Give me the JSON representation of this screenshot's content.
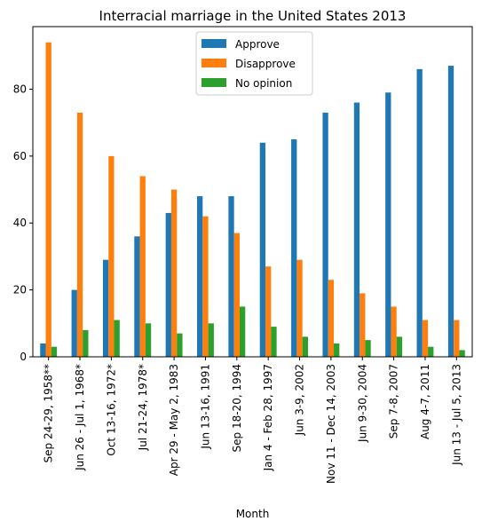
{
  "chart_data": {
    "type": "bar",
    "title": "Interracial marriage in the United States 2013",
    "xlabel": "Month",
    "ylabel": "",
    "ylim": [
      0,
      98.7
    ],
    "yticks": [
      0,
      20,
      40,
      60,
      80
    ],
    "legend_position": "top-center",
    "grid": false,
    "categories": [
      "Sep 24-29, 1958**",
      "Jun 26 - Jul 1, 1968*",
      "Oct 13-16, 1972*",
      "Jul 21-24, 1978*",
      "Apr 29 - May 2, 1983",
      "Jun 13-16, 1991",
      "Sep 18-20, 1994",
      "Jan 4 - Feb 28, 1997",
      "Jun 3-9, 2002",
      "Nov 11 - Dec 14, 2003",
      "Jun 9-30, 2004",
      "Sep 7-8, 2007",
      "Aug 4-7, 2011",
      "Jun 13 - Jul 5, 2013"
    ],
    "series": [
      {
        "name": "Approve",
        "color": "#1f77b4",
        "values": [
          4,
          20,
          29,
          36,
          43,
          48,
          48,
          64,
          65,
          73,
          76,
          79,
          86,
          87
        ]
      },
      {
        "name": "Disapprove",
        "color": "#ff7f0e",
        "values": [
          94,
          73,
          60,
          54,
          50,
          42,
          37,
          27,
          29,
          23,
          19,
          15,
          11,
          11
        ]
      },
      {
        "name": "No opinion",
        "color": "#2ca02c",
        "values": [
          3,
          8,
          11,
          10,
          7,
          10,
          15,
          9,
          6,
          4,
          5,
          6,
          3,
          2
        ]
      }
    ]
  }
}
